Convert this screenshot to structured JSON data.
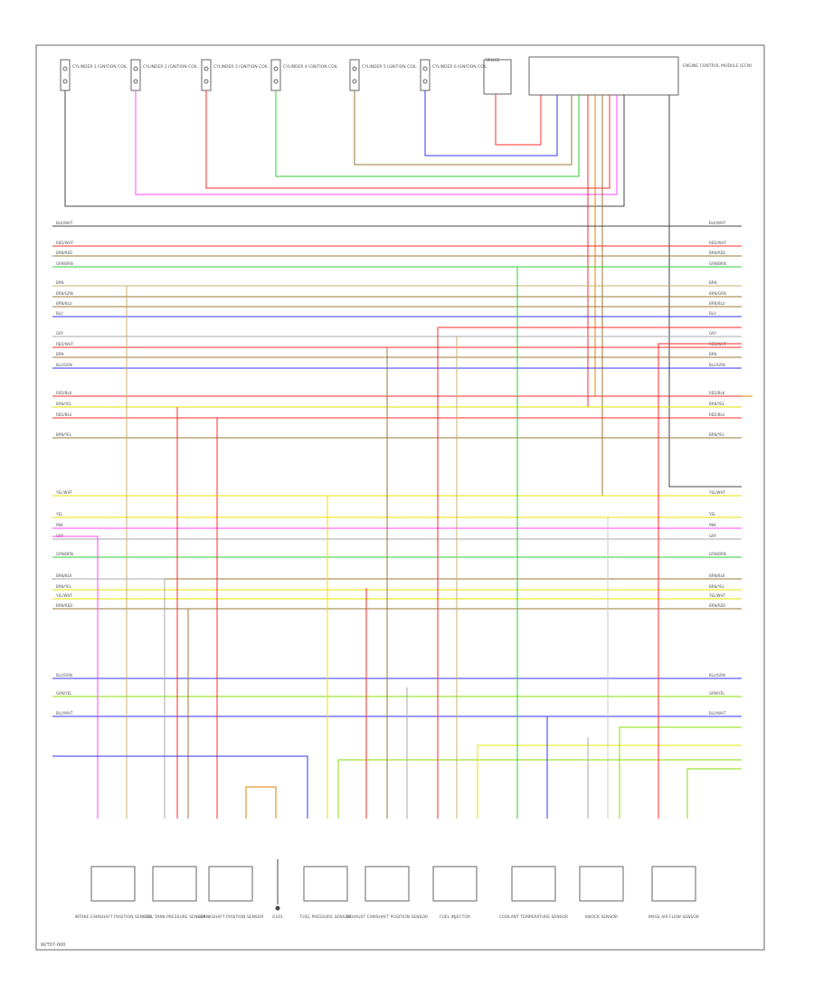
{
  "figure": {
    "footer_code": "W/T07-000",
    "ground_label": "G101"
  },
  "colors": {
    "frame": "#555555",
    "black": "#444444",
    "red": "#ff2b2b",
    "green": "#33cc33",
    "blue": "#3333ff",
    "yellow": "#e6e600",
    "orange": "#e08000",
    "brown": "#9a7a3a",
    "pink": "#ff44ff",
    "gray": "#aaaaaa",
    "tan": "#c8b070",
    "lime": "#88dd00"
  },
  "top_components": [
    {
      "label": "CYLINDER 1 IGNITION COIL"
    },
    {
      "label": "CYLINDER 2 IGNITION COIL"
    },
    {
      "label": "CYLINDER 3 IGNITION COIL"
    },
    {
      "label": "CYLINDER 4 IGNITION COIL"
    },
    {
      "label": "CYLINDER 5 IGNITION COIL"
    },
    {
      "label": "CYLINDER 6 IGNITION COIL"
    },
    {
      "label": "SPLICE"
    },
    {
      "label": "ENGINE CONTROL MODULE (ECM)"
    }
  ],
  "wires": [
    {
      "label": "BLK/WHT",
      "color": "black"
    },
    {
      "label": "RED/WHT",
      "color": "red"
    },
    {
      "label": "BRN/RED",
      "color": "brown"
    },
    {
      "label": "GRN/BRN",
      "color": "green"
    },
    {
      "label": "BRN",
      "color": "tan"
    },
    {
      "label": "BRN/GRN",
      "color": "brown"
    },
    {
      "label": "BRN/BLU",
      "color": "brown"
    },
    {
      "label": "BLU",
      "color": "blue"
    },
    {
      "label": "GRY",
      "color": "gray"
    },
    {
      "label": "RED/WHT",
      "color": "red"
    },
    {
      "label": "BRN",
      "color": "brown"
    },
    {
      "label": "BLU/GRN",
      "color": "blue"
    },
    {
      "label": "RED/BLK",
      "color": "red"
    },
    {
      "label": "BRN/YEL",
      "color": "yellow"
    },
    {
      "label": "RED/BLU",
      "color": "red"
    },
    {
      "label": "BRN/YEL",
      "color": "brown"
    },
    {
      "label": "YEL/WHT",
      "color": "yellow"
    },
    {
      "label": "YEL",
      "color": "yellow"
    },
    {
      "label": "PNK",
      "color": "pink"
    },
    {
      "label": "GRY",
      "color": "gray"
    },
    {
      "label": "GRN/BRN",
      "color": "green"
    },
    {
      "label": "BRN/BLK",
      "color": "brown"
    },
    {
      "label": "BRN/YEL",
      "color": "yellow"
    },
    {
      "label": "YEL/WHT",
      "color": "yellow"
    },
    {
      "label": "BRN/RED",
      "color": "brown"
    },
    {
      "label": "BLU/GRN",
      "color": "blue"
    },
    {
      "label": "GRN/YEL",
      "color": "lime"
    },
    {
      "label": "BLU/WHT",
      "color": "blue"
    }
  ],
  "bottom_components": [
    {
      "label": "INTAKE CAMSHAFT POSITION SENSOR"
    },
    {
      "label": "FUEL TANK PRESSURE SENSOR"
    },
    {
      "label": "CRANKSHAFT POSITION SENSOR"
    },
    {
      "label": "G101"
    },
    {
      "label": "FUEL PRESSURE SENSOR"
    },
    {
      "label": "EXHAUST CAMSHAFT POSITION SENSOR"
    },
    {
      "label": "FUEL INJECTOR"
    },
    {
      "label": "COOLANT TEMPERATURE SENSOR"
    },
    {
      "label": "KNOCK SENSOR"
    },
    {
      "label": "MASS AIR FLOW SENSOR"
    }
  ]
}
